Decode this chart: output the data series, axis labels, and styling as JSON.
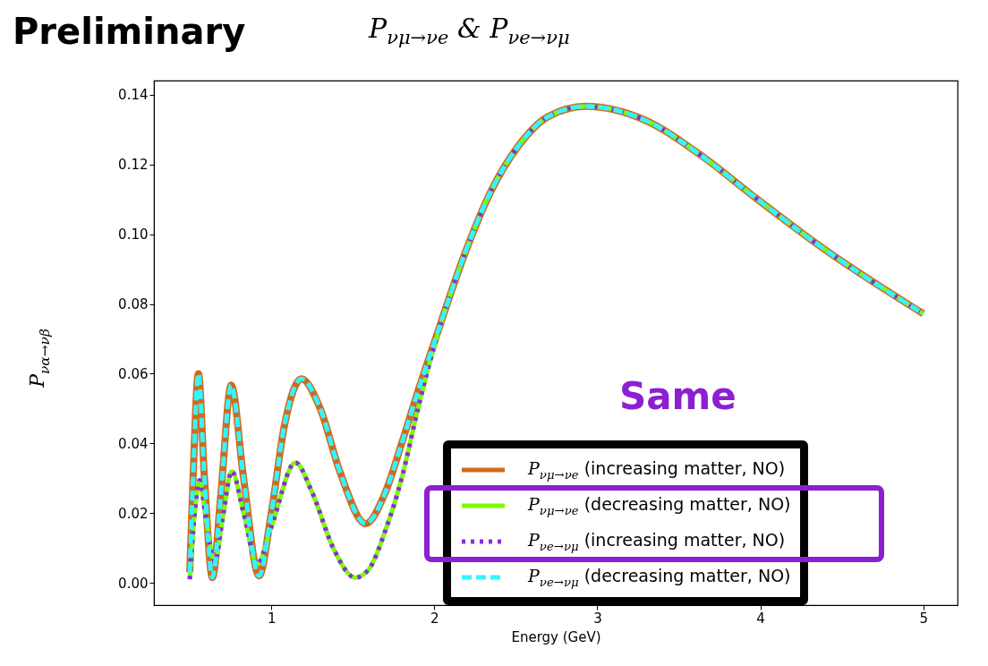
{
  "chart_data": {
    "type": "line",
    "title": "P$_{νμ→νe}$ & P$_{νe→νμ}$",
    "xlabel": "Energy (GeV)",
    "ylabel": "P$_{να→νβ}$",
    "annotations": [
      "Preliminary",
      "Same"
    ],
    "xlim": [
      0.28,
      5.21
    ],
    "ylim": [
      -0.0064,
      0.1441
    ],
    "xticks": [
      1,
      2,
      3,
      4,
      5
    ],
    "yticks": [
      {
        "value": 0,
        "label": "0.00"
      },
      {
        "value": 0.02,
        "label": "0.02"
      },
      {
        "value": 0.04,
        "label": "0.04"
      },
      {
        "value": 0.06,
        "label": "0.06"
      },
      {
        "value": 0.08,
        "label": "0.08"
      },
      {
        "value": 0.1,
        "label": "0.10"
      },
      {
        "value": 0.12,
        "label": "0.12"
      },
      {
        "value": 0.14,
        "label": "0.14"
      }
    ],
    "grid": false,
    "legend": "bottom right",
    "series": [
      {
        "name": "P$_{νμ→νe}$ (increasing matter, NO)",
        "color": "#d2691e",
        "line_style": "solid",
        "x": [
          0.5,
          0.52,
          0.553,
          0.59,
          0.639,
          0.69,
          0.754,
          0.83,
          0.925,
          1.0,
          1.08,
          1.185,
          1.3,
          1.42,
          1.579,
          1.7,
          1.8,
          1.9,
          2.0,
          2.19,
          2.346,
          2.52,
          2.7,
          2.93,
          3.29,
          3.64,
          3.95,
          4.39,
          5.0
        ],
        "values": [
          0.003,
          0.03,
          0.06,
          0.03,
          0.0015,
          0.025,
          0.0567,
          0.03,
          0.002,
          0.02,
          0.045,
          0.0585,
          0.05,
          0.032,
          0.017,
          0.026,
          0.04,
          0.055,
          0.069,
          0.0948,
          0.1122,
          0.1256,
          0.1338,
          0.1367,
          0.1328,
          0.1225,
          0.1112,
          0.0958,
          0.0772
        ]
      },
      {
        "name": "P$_{νμ→νe}$ (decreasing matter, NO)",
        "color": "#7cfc00",
        "line_style": "solid",
        "x": [
          0.5,
          0.53,
          0.56,
          0.6,
          0.654,
          0.7,
          0.758,
          0.83,
          0.914,
          1.0,
          1.148,
          1.25,
          1.38,
          1.515,
          1.6,
          1.7,
          1.8,
          1.9,
          2.0,
          2.19,
          2.346,
          2.52,
          2.7,
          2.93,
          3.29,
          3.64,
          3.95,
          4.39,
          5.0
        ],
        "values": [
          0.001,
          0.02,
          0.0294,
          0.018,
          0.006,
          0.018,
          0.032,
          0.02,
          0.0054,
          0.016,
          0.0345,
          0.026,
          0.01,
          0.0015,
          0.004,
          0.015,
          0.03,
          0.05,
          0.068,
          0.0948,
          0.1122,
          0.1256,
          0.1338,
          0.1367,
          0.1328,
          0.1225,
          0.1112,
          0.0958,
          0.0772
        ]
      },
      {
        "name": "P$_{νe→νμ}$ (increasing matter, NO)",
        "color": "#8a2be2",
        "line_style": "dotted",
        "x": [
          0.5,
          0.53,
          0.56,
          0.6,
          0.654,
          0.7,
          0.758,
          0.83,
          0.914,
          1.0,
          1.148,
          1.25,
          1.38,
          1.515,
          1.6,
          1.7,
          1.8,
          1.9,
          2.0,
          2.19,
          2.346,
          2.52,
          2.7,
          2.93,
          3.29,
          3.64,
          3.95,
          4.39,
          5.0
        ],
        "values": [
          0.001,
          0.02,
          0.0294,
          0.018,
          0.006,
          0.018,
          0.032,
          0.02,
          0.0054,
          0.016,
          0.0345,
          0.026,
          0.01,
          0.0015,
          0.004,
          0.015,
          0.03,
          0.05,
          0.068,
          0.0948,
          0.1122,
          0.1256,
          0.1338,
          0.1367,
          0.1328,
          0.1225,
          0.1112,
          0.0958,
          0.0772
        ]
      },
      {
        "name": "P$_{νe→νμ}$ (decreasing matter, NO)",
        "color": "#33f5ff",
        "line_style": "dashed",
        "x": [
          0.5,
          0.52,
          0.553,
          0.59,
          0.639,
          0.69,
          0.754,
          0.83,
          0.925,
          1.0,
          1.08,
          1.185,
          1.3,
          1.42,
          1.579,
          1.7,
          1.8,
          1.9,
          2.0,
          2.19,
          2.346,
          2.52,
          2.7,
          2.93,
          3.29,
          3.64,
          3.95,
          4.39,
          5.0
        ],
        "values": [
          0.003,
          0.03,
          0.06,
          0.03,
          0.0015,
          0.025,
          0.0567,
          0.03,
          0.002,
          0.02,
          0.045,
          0.0585,
          0.05,
          0.032,
          0.017,
          0.026,
          0.04,
          0.055,
          0.069,
          0.0948,
          0.1122,
          0.1256,
          0.1338,
          0.1367,
          0.1328,
          0.1225,
          0.1112,
          0.0958,
          0.0772
        ]
      }
    ]
  }
}
